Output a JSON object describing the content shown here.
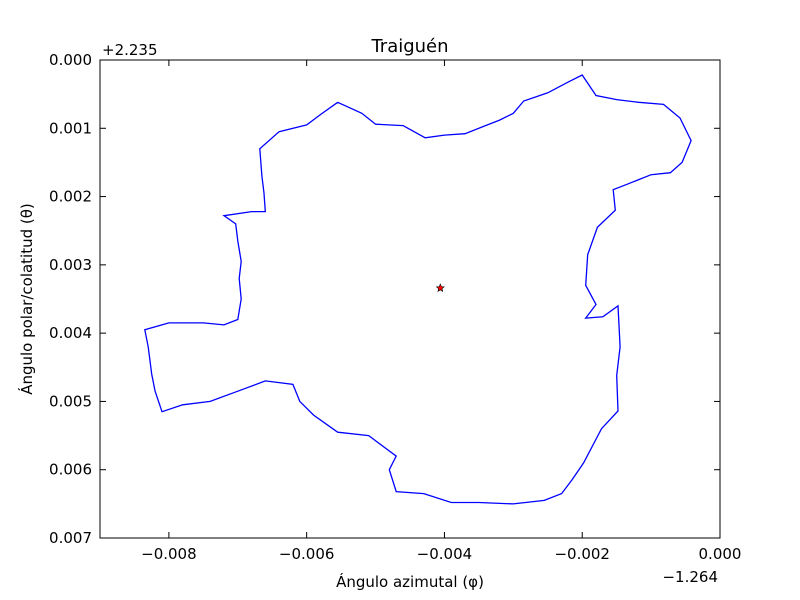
{
  "chart_data": {
    "type": "line",
    "title": "Traiguén",
    "xlabel": "Ángulo azimutal (φ)",
    "ylabel": "Ángulo polar/colatitud (θ)",
    "x_offset_label": "−1.264",
    "y_offset_label": "+2.235",
    "x_offset": -1.264,
    "y_offset": 2.235,
    "xlim": [
      -0.009,
      0.0
    ],
    "ylim": [
      0.007,
      0.0
    ],
    "y_inverted": true,
    "grid": false,
    "xticks": [
      -0.008,
      -0.006,
      -0.004,
      -0.002,
      0.0
    ],
    "xtick_labels": [
      "−0.008",
      "−0.006",
      "−0.004",
      "−0.002",
      "0.000"
    ],
    "yticks": [
      0.0,
      0.001,
      0.002,
      0.003,
      0.004,
      0.005,
      0.006,
      0.007
    ],
    "ytick_labels": [
      "0.000",
      "0.001",
      "0.002",
      "0.003",
      "0.004",
      "0.005",
      "0.006",
      "0.007"
    ],
    "series": [
      {
        "color": "#0000ff",
        "points": [
          [
            -0.00555,
            0.00062
          ],
          [
            -0.0052,
            0.00078
          ],
          [
            -0.005,
            0.00094
          ],
          [
            -0.0046,
            0.00096
          ],
          [
            -0.00428,
            0.00114
          ],
          [
            -0.004,
            0.0011
          ],
          [
            -0.0037,
            0.00108
          ],
          [
            -0.00345,
            0.00098
          ],
          [
            -0.0032,
            0.00088
          ],
          [
            -0.003,
            0.00078
          ],
          [
            -0.00285,
            0.0006
          ],
          [
            -0.0025,
            0.00048
          ],
          [
            -0.0022,
            0.00032
          ],
          [
            -0.002,
            0.00022
          ],
          [
            -0.0018,
            0.00052
          ],
          [
            -0.0015,
            0.00058
          ],
          [
            -0.00118,
            0.00062
          ],
          [
            -0.00082,
            0.00065
          ],
          [
            -0.00058,
            0.00085
          ],
          [
            -0.00042,
            0.00118
          ],
          [
            -0.00055,
            0.0015
          ],
          [
            -0.00072,
            0.00165
          ],
          [
            -0.001,
            0.00168
          ],
          [
            -0.00135,
            0.00182
          ],
          [
            -0.00155,
            0.0019
          ],
          [
            -0.00152,
            0.0022
          ],
          [
            -0.00178,
            0.00245
          ],
          [
            -0.00192,
            0.00285
          ],
          [
            -0.00195,
            0.0033
          ],
          [
            -0.0018,
            0.00358
          ],
          [
            -0.00195,
            0.00378
          ],
          [
            -0.0017,
            0.00376
          ],
          [
            -0.00148,
            0.0036
          ],
          [
            -0.00145,
            0.0042
          ],
          [
            -0.0015,
            0.00462
          ],
          [
            -0.00148,
            0.00514
          ],
          [
            -0.00172,
            0.0054
          ],
          [
            -0.00198,
            0.0059
          ],
          [
            -0.00215,
            0.00615
          ],
          [
            -0.0023,
            0.00635
          ],
          [
            -0.00255,
            0.00645
          ],
          [
            -0.003,
            0.0065
          ],
          [
            -0.0035,
            0.00648
          ],
          [
            -0.0039,
            0.00648
          ],
          [
            -0.0043,
            0.00635
          ],
          [
            -0.0047,
            0.00632
          ],
          [
            -0.0048,
            0.006
          ],
          [
            -0.0047,
            0.0058
          ],
          [
            -0.0051,
            0.0055
          ],
          [
            -0.00555,
            0.00545
          ],
          [
            -0.0059,
            0.0052
          ],
          [
            -0.0061,
            0.005
          ],
          [
            -0.0062,
            0.00475
          ],
          [
            -0.0066,
            0.0047
          ],
          [
            -0.007,
            0.00485
          ],
          [
            -0.0074,
            0.005
          ],
          [
            -0.0078,
            0.00505
          ],
          [
            -0.0081,
            0.00515
          ],
          [
            -0.0082,
            0.00485
          ],
          [
            -0.00825,
            0.0046
          ],
          [
            -0.0083,
            0.0042
          ],
          [
            -0.00835,
            0.00395
          ],
          [
            -0.008,
            0.00385
          ],
          [
            -0.0075,
            0.00385
          ],
          [
            -0.0072,
            0.00388
          ],
          [
            -0.007,
            0.0038
          ],
          [
            -0.00695,
            0.0035
          ],
          [
            -0.00698,
            0.0032
          ],
          [
            -0.00695,
            0.00295
          ],
          [
            -0.007,
            0.00265
          ],
          [
            -0.00703,
            0.0024
          ],
          [
            -0.0072,
            0.00228
          ],
          [
            -0.0068,
            0.00222
          ],
          [
            -0.0066,
            0.00222
          ],
          [
            -0.00662,
            0.00195
          ],
          [
            -0.00665,
            0.0017
          ],
          [
            -0.00668,
            0.0013
          ],
          [
            -0.0064,
            0.00105
          ],
          [
            -0.006,
            0.00095
          ],
          [
            -0.0058,
            0.0008
          ],
          [
            -0.00555,
            0.00062
          ]
        ]
      }
    ],
    "marker": {
      "x": -0.00406,
      "y": 0.00334,
      "shape": "star",
      "color": "#ff0000"
    }
  }
}
